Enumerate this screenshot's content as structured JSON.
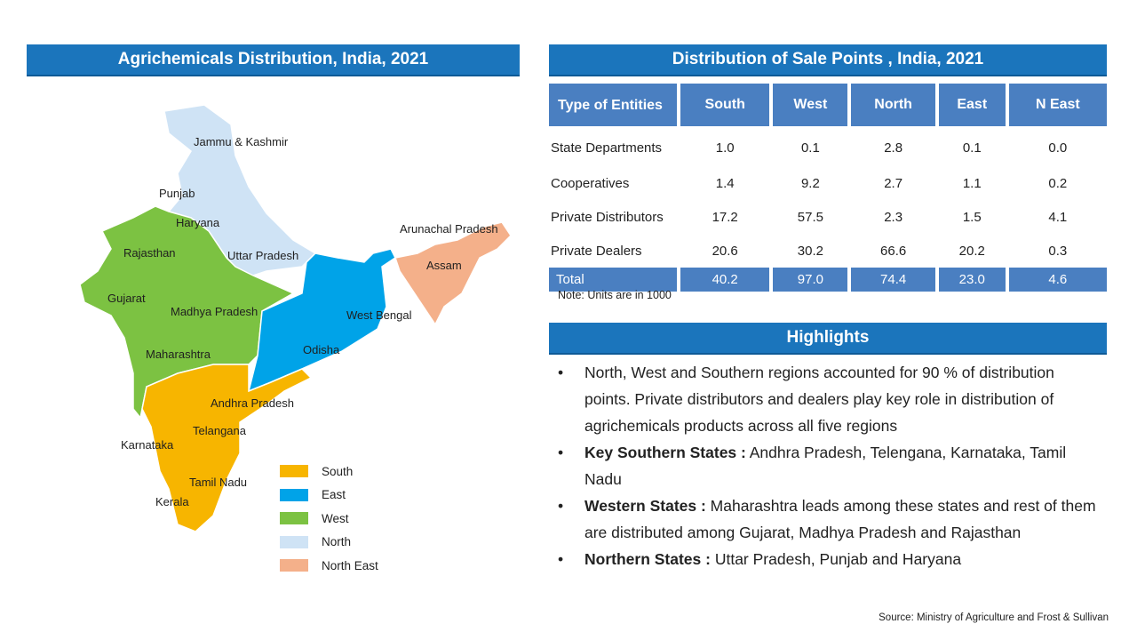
{
  "map_panel": {
    "title": "Agrichemicals Distribution, India, 2021",
    "region_colors": {
      "South": "#f7b500",
      "East": "#00a3e8",
      "West": "#7cc242",
      "North": "#cfe3f5",
      "North East": "#f4b08a"
    },
    "state_labels": [
      "Jammu & Kashmir",
      "Punjab",
      "Haryana",
      "Rajasthan",
      "Uttar Pradesh",
      "Arunachal Pradesh",
      "Assam",
      "Gujarat",
      "Madhya Pradesh",
      "West Bengal",
      "Odisha",
      "Maharashtra",
      "Andhra Pradesh",
      "Telangana",
      "Karnataka",
      "Tamil Nadu",
      "Kerala"
    ],
    "legend": [
      "South",
      "East",
      "West",
      "North",
      "North East"
    ]
  },
  "table_panel": {
    "title": "Distribution  of Sale Points , India, 2021",
    "headers": [
      "Type of Entities",
      "South",
      "West",
      "North",
      "East",
      "N East"
    ],
    "rows": [
      [
        "State Departments",
        "1.0",
        "0.1",
        "2.8",
        "0.1",
        "0.0"
      ],
      [
        "Cooperatives",
        "1.4",
        "9.2",
        "2.7",
        "1.1",
        "0.2"
      ],
      [
        "Private Distributors",
        "17.2",
        "57.5",
        "2.3",
        "1.5",
        "4.1"
      ],
      [
        "Private  Dealers",
        "20.6",
        "30.2",
        "66.6",
        "20.2",
        "0.3"
      ]
    ],
    "total": [
      "Total",
      "40.2",
      "97.0",
      "74.4",
      "23.0",
      "4.6"
    ],
    "note": "Note: Units are in 1000"
  },
  "highlights": {
    "title": "Highlights",
    "items": [
      {
        "bold": "",
        "text": "North, West and Southern regions accounted for 90 % of distribution points. Private distributors and dealers play key role in distribution of agrichemicals products across all  five regions"
      },
      {
        "bold": "Key Southern States :",
        "text": " Andhra Pradesh, Telengana, Karnataka, Tamil Nadu"
      },
      {
        "bold": "Western States :",
        "text": "  Maharashtra leads among these states and rest of them are distributed  among Gujarat, Madhya Pradesh and Rajasthan"
      },
      {
        "bold": "Northern States :",
        "text": " Uttar Pradesh, Punjab and Haryana"
      }
    ]
  },
  "source": "Source: Ministry of Agriculture  and Frost & Sullivan"
}
